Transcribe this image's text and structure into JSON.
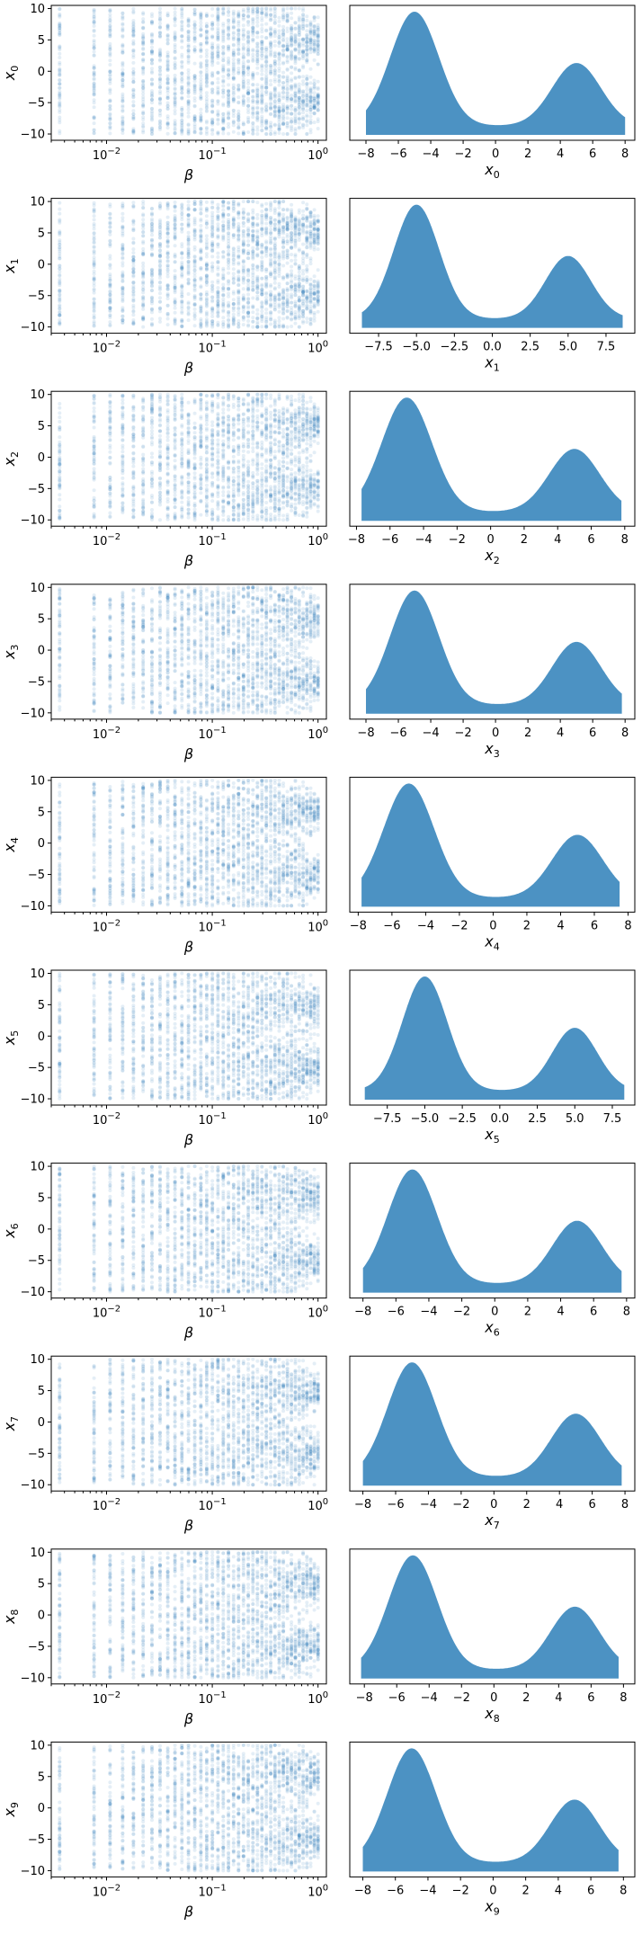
{
  "figure": {
    "rows": 10,
    "scatter_color": "#1f77b4",
    "scatter_alpha": 0.12,
    "area_color": "#1f77b4",
    "area_alpha": 0.8
  },
  "chart_data": [
    {
      "type": "scatter",
      "row": 0,
      "xlabel": "β",
      "ylabel": "x0",
      "xscale": "log",
      "xlim": [
        0.003,
        1.2
      ],
      "ylim": [
        -11,
        10.5
      ],
      "xticks": [
        0.01,
        0.1,
        1
      ],
      "xtick_labels": [
        "10−2",
        "10−1",
        "100"
      ],
      "yticks": [
        10,
        5,
        0,
        -5,
        -10
      ],
      "ytick_labels": [
        "10",
        "5",
        "0",
        "−5",
        "−10"
      ],
      "beta_min": 0.0036,
      "beta_max": 1.0,
      "n_beta": 40,
      "y_range": [
        -10,
        10
      ],
      "mode_centers": [
        -5,
        5
      ]
    },
    {
      "type": "area",
      "row": 0,
      "xlabel": "x0",
      "xlim": [
        -9,
        8.6
      ],
      "x_range": [
        -8,
        8
      ],
      "xticks": [
        -8,
        -6,
        -4,
        -2,
        0,
        2,
        4,
        6,
        8
      ],
      "xtick_labels": [
        "−8",
        "−6",
        "−4",
        "−2",
        "0",
        "2",
        "4",
        "6",
        "8"
      ],
      "peaks": [
        {
          "center": -5,
          "height": 1.0
        },
        {
          "center": 5,
          "height": 0.55
        }
      ],
      "width": 1.5,
      "floor": 0.08
    },
    {
      "type": "scatter",
      "row": 1,
      "xlabel": "β",
      "ylabel": "x1",
      "xscale": "log",
      "xlim": [
        0.003,
        1.2
      ],
      "ylim": [
        -11,
        10.5
      ],
      "xticks": [
        0.01,
        0.1,
        1
      ],
      "xtick_labels": [
        "10−2",
        "10−1",
        "100"
      ],
      "yticks": [
        10,
        5,
        0,
        -5,
        -10
      ],
      "ytick_labels": [
        "10",
        "5",
        "0",
        "−5",
        "−10"
      ],
      "beta_min": 0.0036,
      "beta_max": 1.0,
      "n_beta": 40,
      "y_range": [
        -10,
        10
      ],
      "mode_centers": [
        -5,
        5
      ]
    },
    {
      "type": "area",
      "row": 1,
      "xlabel": "x1",
      "xlim": [
        -9.4,
        9.4
      ],
      "x_range": [
        -8.6,
        8.6
      ],
      "xticks": [
        -7.5,
        -5,
        -2.5,
        0,
        2.5,
        5,
        7.5
      ],
      "xtick_labels": [
        "−7.5",
        "−5.0",
        "−2.5",
        "0.0",
        "2.5",
        "5.0",
        "7.5"
      ],
      "peaks": [
        {
          "center": -5,
          "height": 1.0
        },
        {
          "center": 5,
          "height": 0.55
        }
      ],
      "width": 1.5,
      "floor": 0.08
    },
    {
      "type": "scatter",
      "row": 2,
      "xlabel": "β",
      "ylabel": "x2",
      "xscale": "log",
      "xlim": [
        0.003,
        1.2
      ],
      "ylim": [
        -11,
        10.5
      ],
      "xticks": [
        0.01,
        0.1,
        1
      ],
      "xtick_labels": [
        "10−2",
        "10−1",
        "100"
      ],
      "yticks": [
        10,
        5,
        0,
        -5,
        -10
      ],
      "ytick_labels": [
        "10",
        "5",
        "0",
        "−5",
        "−10"
      ],
      "beta_min": 0.0036,
      "beta_max": 1.0,
      "n_beta": 40,
      "y_range": [
        -10,
        10
      ],
      "mode_centers": [
        -5,
        5
      ]
    },
    {
      "type": "area",
      "row": 2,
      "xlabel": "x2",
      "xlim": [
        -8.4,
        8.6
      ],
      "x_range": [
        -7.7,
        7.8
      ],
      "xticks": [
        -8,
        -6,
        -4,
        -2,
        0,
        2,
        4,
        6,
        8
      ],
      "xtick_labels": [
        "−8",
        "−6",
        "−4",
        "−2",
        "0",
        "2",
        "4",
        "6",
        "8"
      ],
      "peaks": [
        {
          "center": -5,
          "height": 1.0
        },
        {
          "center": 5,
          "height": 0.55
        }
      ],
      "width": 1.5,
      "floor": 0.08
    },
    {
      "type": "scatter",
      "row": 3,
      "xlabel": "β",
      "ylabel": "x3",
      "xscale": "log",
      "xlim": [
        0.003,
        1.2
      ],
      "ylim": [
        -11,
        10.5
      ],
      "xticks": [
        0.01,
        0.1,
        1
      ],
      "xtick_labels": [
        "10−2",
        "10−1",
        "100"
      ],
      "yticks": [
        10,
        5,
        0,
        -5,
        -10
      ],
      "ytick_labels": [
        "10",
        "5",
        "0",
        "−5",
        "−10"
      ],
      "beta_min": 0.0036,
      "beta_max": 1.0,
      "n_beta": 40,
      "y_range": [
        -10,
        10
      ],
      "mode_centers": [
        -5,
        5
      ]
    },
    {
      "type": "area",
      "row": 3,
      "xlabel": "x3",
      "xlim": [
        -9,
        8.6
      ],
      "x_range": [
        -8,
        7.8
      ],
      "xticks": [
        -8,
        -6,
        -4,
        -2,
        0,
        2,
        4,
        6,
        8
      ],
      "xtick_labels": [
        "−8",
        "−6",
        "−4",
        "−2",
        "0",
        "2",
        "4",
        "6",
        "8"
      ],
      "peaks": [
        {
          "center": -5,
          "height": 1.0
        },
        {
          "center": 5,
          "height": 0.55
        }
      ],
      "width": 1.5,
      "floor": 0.08
    },
    {
      "type": "scatter",
      "row": 4,
      "xlabel": "β",
      "ylabel": "x4",
      "xscale": "log",
      "xlim": [
        0.003,
        1.2
      ],
      "ylim": [
        -11,
        10.5
      ],
      "xticks": [
        0.01,
        0.1,
        1
      ],
      "xtick_labels": [
        "10−2",
        "10−1",
        "100"
      ],
      "yticks": [
        10,
        5,
        0,
        -5,
        -10
      ],
      "ytick_labels": [
        "10",
        "5",
        "0",
        "−5",
        "−10"
      ],
      "beta_min": 0.0036,
      "beta_max": 1.0,
      "n_beta": 40,
      "y_range": [
        -10,
        10
      ],
      "mode_centers": [
        -5,
        5
      ]
    },
    {
      "type": "area",
      "row": 4,
      "xlabel": "x4",
      "xlim": [
        -8.5,
        8.4
      ],
      "x_range": [
        -7.8,
        7.5
      ],
      "xticks": [
        -8,
        -6,
        -4,
        -2,
        0,
        2,
        4,
        6,
        8
      ],
      "xtick_labels": [
        "−8",
        "−6",
        "−4",
        "−2",
        "0",
        "2",
        "4",
        "6",
        "8"
      ],
      "peaks": [
        {
          "center": -5,
          "height": 1.0
        },
        {
          "center": 5,
          "height": 0.55
        }
      ],
      "width": 1.5,
      "floor": 0.08
    },
    {
      "type": "scatter",
      "row": 5,
      "xlabel": "β",
      "ylabel": "x5",
      "xscale": "log",
      "xlim": [
        0.003,
        1.2
      ],
      "ylim": [
        -11,
        10.5
      ],
      "xticks": [
        0.01,
        0.1,
        1
      ],
      "xtick_labels": [
        "10−2",
        "10−1",
        "100"
      ],
      "yticks": [
        10,
        5,
        0,
        -5,
        -10
      ],
      "ytick_labels": [
        "10",
        "5",
        "0",
        "−5",
        "−10"
      ],
      "beta_min": 0.0036,
      "beta_max": 1.0,
      "n_beta": 40,
      "y_range": [
        -10,
        10
      ],
      "mode_centers": [
        -5,
        5
      ]
    },
    {
      "type": "area",
      "row": 5,
      "xlabel": "x5",
      "xlim": [
        -10,
        9
      ],
      "x_range": [
        -9,
        8.3
      ],
      "xticks": [
        -7.5,
        -5,
        -2.5,
        0,
        2.5,
        5,
        7.5
      ],
      "xtick_labels": [
        "−7.5",
        "−5.0",
        "−2.5",
        "0.0",
        "2.5",
        "5.0",
        "7.5"
      ],
      "peaks": [
        {
          "center": -5,
          "height": 1.0
        },
        {
          "center": 5,
          "height": 0.55
        }
      ],
      "width": 1.5,
      "floor": 0.08
    },
    {
      "type": "scatter",
      "row": 6,
      "xlabel": "β",
      "ylabel": "x6",
      "xscale": "log",
      "xlim": [
        0.003,
        1.2
      ],
      "ylim": [
        -11,
        10.5
      ],
      "xticks": [
        0.01,
        0.1,
        1
      ],
      "xtick_labels": [
        "10−2",
        "10−1",
        "100"
      ],
      "yticks": [
        10,
        5,
        0,
        -5,
        -10
      ],
      "ytick_labels": [
        "10",
        "5",
        "0",
        "−5",
        "−10"
      ],
      "beta_min": 0.0036,
      "beta_max": 1.0,
      "n_beta": 40,
      "y_range": [
        -10,
        10
      ],
      "mode_centers": [
        -5,
        5
      ]
    },
    {
      "type": "area",
      "row": 6,
      "xlabel": "x6",
      "xlim": [
        -8.8,
        8.5
      ],
      "x_range": [
        -8,
        7.7
      ],
      "xticks": [
        -8,
        -6,
        -4,
        -2,
        0,
        2,
        4,
        6,
        8
      ],
      "xtick_labels": [
        "−8",
        "−6",
        "−4",
        "−2",
        "0",
        "2",
        "4",
        "6",
        "8"
      ],
      "peaks": [
        {
          "center": -5,
          "height": 1.0
        },
        {
          "center": 5,
          "height": 0.55
        }
      ],
      "width": 1.5,
      "floor": 0.08
    },
    {
      "type": "scatter",
      "row": 7,
      "xlabel": "β",
      "ylabel": "x7",
      "xscale": "log",
      "xlim": [
        0.003,
        1.2
      ],
      "ylim": [
        -11,
        10.5
      ],
      "xticks": [
        0.01,
        0.1,
        1
      ],
      "xtick_labels": [
        "10−2",
        "10−1",
        "100"
      ],
      "yticks": [
        10,
        5,
        0,
        -5,
        -10
      ],
      "ytick_labels": [
        "10",
        "5",
        "0",
        "−5",
        "−10"
      ],
      "beta_min": 0.0036,
      "beta_max": 1.0,
      "n_beta": 40,
      "y_range": [
        -10,
        10
      ],
      "mode_centers": [
        -5,
        5
      ]
    },
    {
      "type": "area",
      "row": 7,
      "xlabel": "x7",
      "xlim": [
        -8.8,
        8.6
      ],
      "x_range": [
        -8,
        7.8
      ],
      "xticks": [
        -8,
        -6,
        -4,
        -2,
        0,
        2,
        4,
        6,
        8
      ],
      "xtick_labels": [
        "−8",
        "−6",
        "−4",
        "−2",
        "0",
        "2",
        "4",
        "6",
        "8"
      ],
      "peaks": [
        {
          "center": -5,
          "height": 1.0
        },
        {
          "center": 5,
          "height": 0.55
        }
      ],
      "width": 1.5,
      "floor": 0.08
    },
    {
      "type": "scatter",
      "row": 8,
      "xlabel": "β",
      "ylabel": "x8",
      "xscale": "log",
      "xlim": [
        0.003,
        1.2
      ],
      "ylim": [
        -11,
        10.5
      ],
      "xticks": [
        0.01,
        0.1,
        1
      ],
      "xtick_labels": [
        "10−2",
        "10−1",
        "100"
      ],
      "yticks": [
        10,
        5,
        0,
        -5,
        -10
      ],
      "ytick_labels": [
        "10",
        "5",
        "0",
        "−5",
        "−10"
      ],
      "beta_min": 0.0036,
      "beta_max": 1.0,
      "n_beta": 40,
      "y_range": [
        -10,
        10
      ],
      "mode_centers": [
        -5,
        5
      ]
    },
    {
      "type": "area",
      "row": 8,
      "xlabel": "x8",
      "xlim": [
        -8.9,
        8.7
      ],
      "x_range": [
        -8.2,
        7.7
      ],
      "xticks": [
        -8,
        -6,
        -4,
        -2,
        0,
        2,
        4,
        6,
        8
      ],
      "xtick_labels": [
        "−8",
        "−6",
        "−4",
        "−2",
        "0",
        "2",
        "4",
        "6",
        "8"
      ],
      "peaks": [
        {
          "center": -5,
          "height": 1.0
        },
        {
          "center": 5,
          "height": 0.55
        }
      ],
      "width": 1.5,
      "floor": 0.08
    },
    {
      "type": "scatter",
      "row": 9,
      "xlabel": "β",
      "ylabel": "x9",
      "xscale": "log",
      "xlim": [
        0.003,
        1.2
      ],
      "ylim": [
        -11,
        10.5
      ],
      "xticks": [
        0.01,
        0.1,
        1
      ],
      "xtick_labels": [
        "10−2",
        "10−1",
        "100"
      ],
      "yticks": [
        10,
        5,
        0,
        -5,
        -10
      ],
      "ytick_labels": [
        "10",
        "5",
        "0",
        "−5",
        "−10"
      ],
      "beta_min": 0.0036,
      "beta_max": 1.0,
      "n_beta": 40,
      "y_range": [
        -10,
        10
      ],
      "mode_centers": [
        -5,
        5
      ]
    },
    {
      "type": "area",
      "row": 9,
      "xlabel": "x9",
      "xlim": [
        -8.8,
        8.7
      ],
      "x_range": [
        -8,
        7.7
      ],
      "xticks": [
        -8,
        -6,
        -4,
        -2,
        0,
        2,
        4,
        6,
        8
      ],
      "xtick_labels": [
        "−8",
        "−6",
        "−4",
        "−2",
        "0",
        "2",
        "4",
        "6",
        "8"
      ],
      "peaks": [
        {
          "center": -5,
          "height": 1.0
        },
        {
          "center": 5,
          "height": 0.55
        }
      ],
      "width": 1.5,
      "floor": 0.08
    }
  ]
}
